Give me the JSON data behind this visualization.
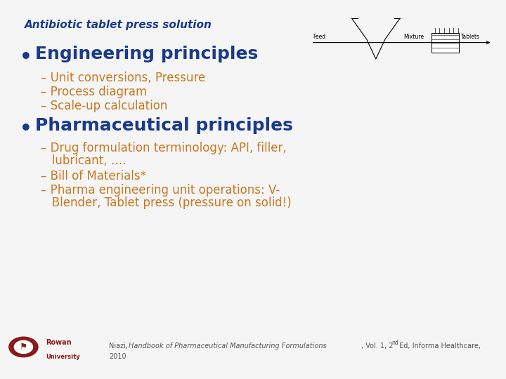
{
  "bg_color": "#f5f5f5",
  "title": "Antibiotic tablet press solution",
  "title_color": "#1a3a8a",
  "title_fontsize": 11,
  "bullet1_text": "Engineering principles",
  "bullet1_color": "#1a3a8a",
  "bullet1_fontsize": 18,
  "sub1": [
    "– Unit conversions, Pressure",
    "– Process diagram",
    "– Scale-up calculation"
  ],
  "sub1_color": "#c87820",
  "sub1_fontsize": 12,
  "bullet2_text": "Pharmaceutical principles",
  "bullet2_color": "#1a3a8a",
  "bullet2_fontsize": 18,
  "sub2_line1": "– Drug formulation terminology: API, filler,",
  "sub2_line1b": "   lubricant, ….",
  "sub2_line2": "– Bill of Materials*",
  "sub2_line3": "– Pharma engineering unit operations: V-",
  "sub2_line3b": "   Blender, Tablet press (pressure on solid!)",
  "sub2_color": "#c87820",
  "sub2_fontsize": 12,
  "bullet_dot_color": "#1a3a8a",
  "footer_line1": "Niazi, Handbook of Pharmaceutical Manufacturing Formulations, Vol. 1, 2",
  "footer_super": "nd",
  "footer_line1_end": " Ed, Informa Healthcare,",
  "footer_line2": "2010",
  "footer_fontsize": 7,
  "footer_color": "#555555",
  "rowan_color": "#8B1A1A"
}
